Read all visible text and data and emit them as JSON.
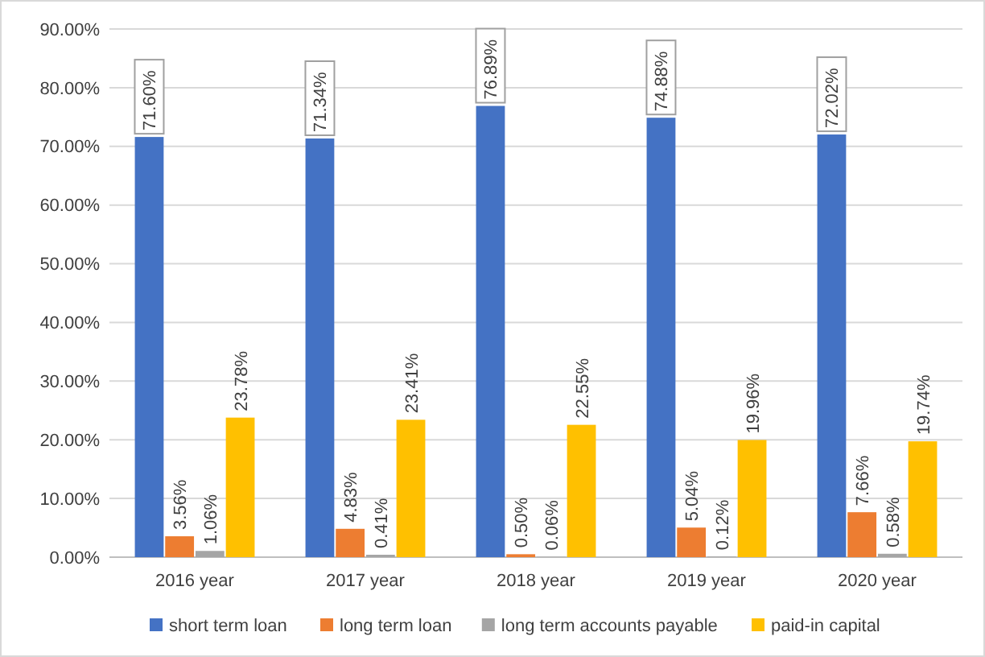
{
  "chart_data": {
    "type": "bar",
    "categories": [
      "2016 year",
      "2017 year",
      "2018 year",
      "2019 year",
      "2020 year"
    ],
    "series": [
      {
        "name": "short term loan",
        "color": "#4472c4",
        "values": [
          71.6,
          71.34,
          76.89,
          74.88,
          72.02
        ],
        "value_labels": [
          "71.60%",
          "71.34%",
          "76.89%",
          "74.88%",
          "72.02%"
        ]
      },
      {
        "name": "long term loan",
        "color": "#ed7d31",
        "values": [
          3.56,
          4.83,
          0.5,
          5.04,
          7.66
        ],
        "value_labels": [
          "3.56%",
          "4.83%",
          "0.50%",
          "5.04%",
          "7.66%"
        ]
      },
      {
        "name": "long term accounts payable",
        "color": "#a5a5a5",
        "values": [
          1.06,
          0.41,
          0.06,
          0.12,
          0.58
        ],
        "value_labels": [
          "1.06%",
          "0.41%",
          "0.06%",
          "0.12%",
          "0.58%"
        ]
      },
      {
        "name": "paid-in capital",
        "color": "#ffc000",
        "values": [
          23.78,
          23.41,
          22.55,
          19.96,
          19.74
        ],
        "value_labels": [
          "23.78%",
          "23.41%",
          "22.55%",
          "19.96%",
          "19.74%"
        ]
      }
    ],
    "ylim": [
      0,
      90
    ],
    "yticks": [
      {
        "value": 0,
        "label": "0.00%"
      },
      {
        "value": 10,
        "label": "10.00%"
      },
      {
        "value": 20,
        "label": "20.00%"
      },
      {
        "value": 30,
        "label": "30.00%"
      },
      {
        "value": 40,
        "label": "40.00%"
      },
      {
        "value": 50,
        "label": "50.00%"
      },
      {
        "value": 60,
        "label": "60.00%"
      },
      {
        "value": 70,
        "label": "70.00%"
      },
      {
        "value": 80,
        "label": "80.00%"
      },
      {
        "value": 90,
        "label": "90.00%"
      }
    ],
    "grid": "y",
    "legend": "bottom"
  }
}
